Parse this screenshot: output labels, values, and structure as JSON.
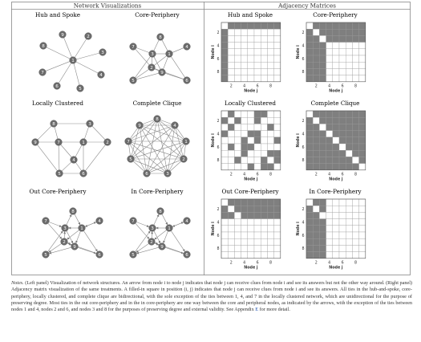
{
  "headers": {
    "left": "Network Visualizations",
    "right": "Adjacency Matrices"
  },
  "networks": [
    {
      "title": "Hub and Spoke"
    },
    {
      "title": "Core-Periphery"
    },
    {
      "title": "Locally Clustered"
    },
    {
      "title": "Complete Clique"
    },
    {
      "title": "Out Core-Periphery"
    },
    {
      "title": "In Core-Periphery"
    }
  ],
  "matrices": [
    {
      "title": "Hub and Spoke"
    },
    {
      "title": "Core-Periphery"
    },
    {
      "title": "Locally Clustered"
    },
    {
      "title": "Complete Clique"
    },
    {
      "title": "Out Core-Periphery"
    },
    {
      "title": "In Core-Periphery"
    }
  ],
  "axis": {
    "xlabel": "Node j",
    "ylabel": "Node i",
    "ticks": [
      "2",
      "4",
      "6",
      "8"
    ]
  },
  "node_labels": [
    "1",
    "2",
    "3",
    "4",
    "5",
    "6",
    "7",
    "8",
    "9"
  ],
  "notes": {
    "lead": "Notes.",
    "text": " (Left panel) Visualization of network structures. An arrow from node i to node j indicates that node j can receive clues from node i and see its answers but not the other way around. (Right panel) Adjacency matrix visualization of the same treatments. A filled-in square in position (i, j) indicates that node j can receive clues from node i and see its answers. All ties in the hub-and-spoke, core-periphery, locally clustered, and complete clique are bidirectional, with the sole exception of the ties between 1, 4, and 7 in the locally clustered network, which are unidirectional for the purpose of preserving degree. Most ties in the out core-periphery and in the in core-periphery are one way between the core and peripheral nodes, as indicated by the arrows, with the exception of the ties between nodes 1 and 4, nodes 2 and 6, and nodes 3 and 8 for the purposes of preserving degree and external validity. See Appendix ",
    "ref": "E",
    "tail": " for more detail."
  },
  "colors": {
    "fill": "#7f7f7f",
    "node": "#6b6b6b",
    "edge": "#8a8a8a",
    "grid": "#9a9a9a"
  }
}
